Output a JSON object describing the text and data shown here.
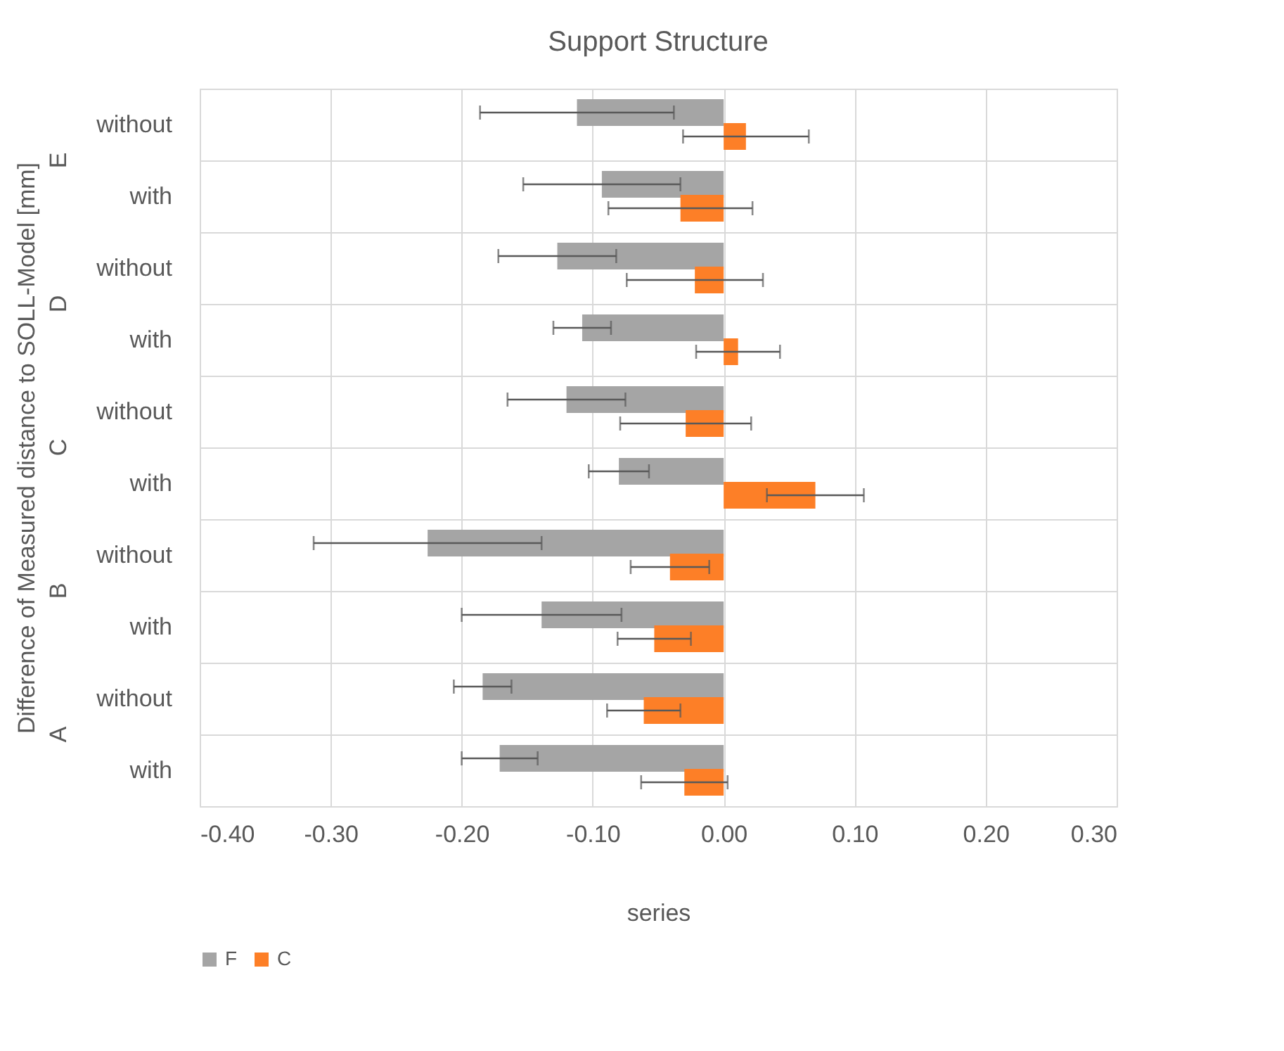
{
  "chart_data": {
    "type": "bar",
    "orientation": "horizontal",
    "title": "Support Structure",
    "xlabel": "series",
    "ylabel": "Difference of Measured distance to SOLL-Model [mm]",
    "categories": [
      "without",
      "with",
      "without",
      "with",
      "without",
      "with",
      "without",
      "with",
      "without",
      "with"
    ],
    "annotations": [
      "E",
      "D",
      "C",
      "B",
      "A"
    ],
    "series": [
      {
        "name": "F",
        "color": "#a5a5a5",
        "values": [
          -0.112,
          -0.093,
          -0.127,
          -0.108,
          -0.12,
          -0.08,
          -0.226,
          -0.139,
          -0.184,
          -0.171
        ],
        "errors": [
          0.074,
          0.06,
          0.045,
          0.022,
          0.045,
          0.023,
          0.087,
          0.061,
          0.022,
          0.029
        ]
      },
      {
        "name": "C",
        "color": "#fd7f27",
        "values": [
          0.017,
          -0.033,
          -0.022,
          0.011,
          -0.029,
          0.07,
          -0.041,
          -0.053,
          -0.061,
          -0.03
        ],
        "errors": [
          0.048,
          0.055,
          0.052,
          0.032,
          0.05,
          0.037,
          0.03,
          0.028,
          0.028,
          0.033
        ]
      }
    ],
    "xlim": [
      -0.4,
      0.3
    ],
    "xticks": [
      {
        "value": -0.4,
        "label": "-0.40"
      },
      {
        "value": -0.3,
        "label": "-0.30"
      },
      {
        "value": -0.2,
        "label": "-0.20"
      },
      {
        "value": -0.1,
        "label": "-0.10"
      },
      {
        "value": 0,
        "label": "0.00"
      },
      {
        "value": 0.1,
        "label": "0.10"
      },
      {
        "value": 0.2,
        "label": "0.20"
      },
      {
        "value": 0.3,
        "label": "0.30"
      }
    ],
    "grid": true,
    "legend": "bottom"
  }
}
